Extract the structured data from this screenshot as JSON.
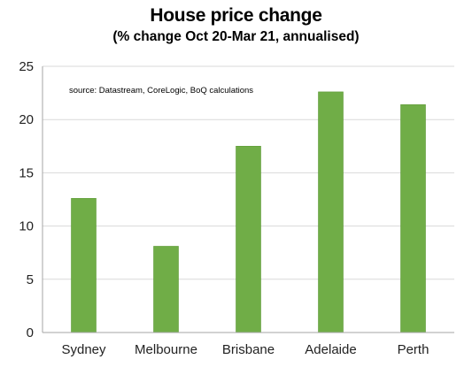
{
  "chart_data": {
    "type": "bar",
    "title": "House price change",
    "subtitle": "(% change Oct 20-Mar 21, annualised)",
    "source_note": "source:  Datastream, CoreLogic, BoQ calculations",
    "categories": [
      "Sydney",
      "Melbourne",
      "Brisbane",
      "Adelaide",
      "Perth"
    ],
    "values": [
      12.6,
      8.1,
      17.5,
      22.6,
      21.4
    ],
    "ylim": [
      0,
      25
    ],
    "yticks": [
      0,
      5,
      10,
      15,
      20,
      25
    ],
    "xlabel": "",
    "ylabel": "",
    "grid": true,
    "bar_color": "#70ad47",
    "bar_edge_color": "#5e9a37",
    "grid_color": "#d9d9d9",
    "axis_color": "#a6a6a6"
  }
}
